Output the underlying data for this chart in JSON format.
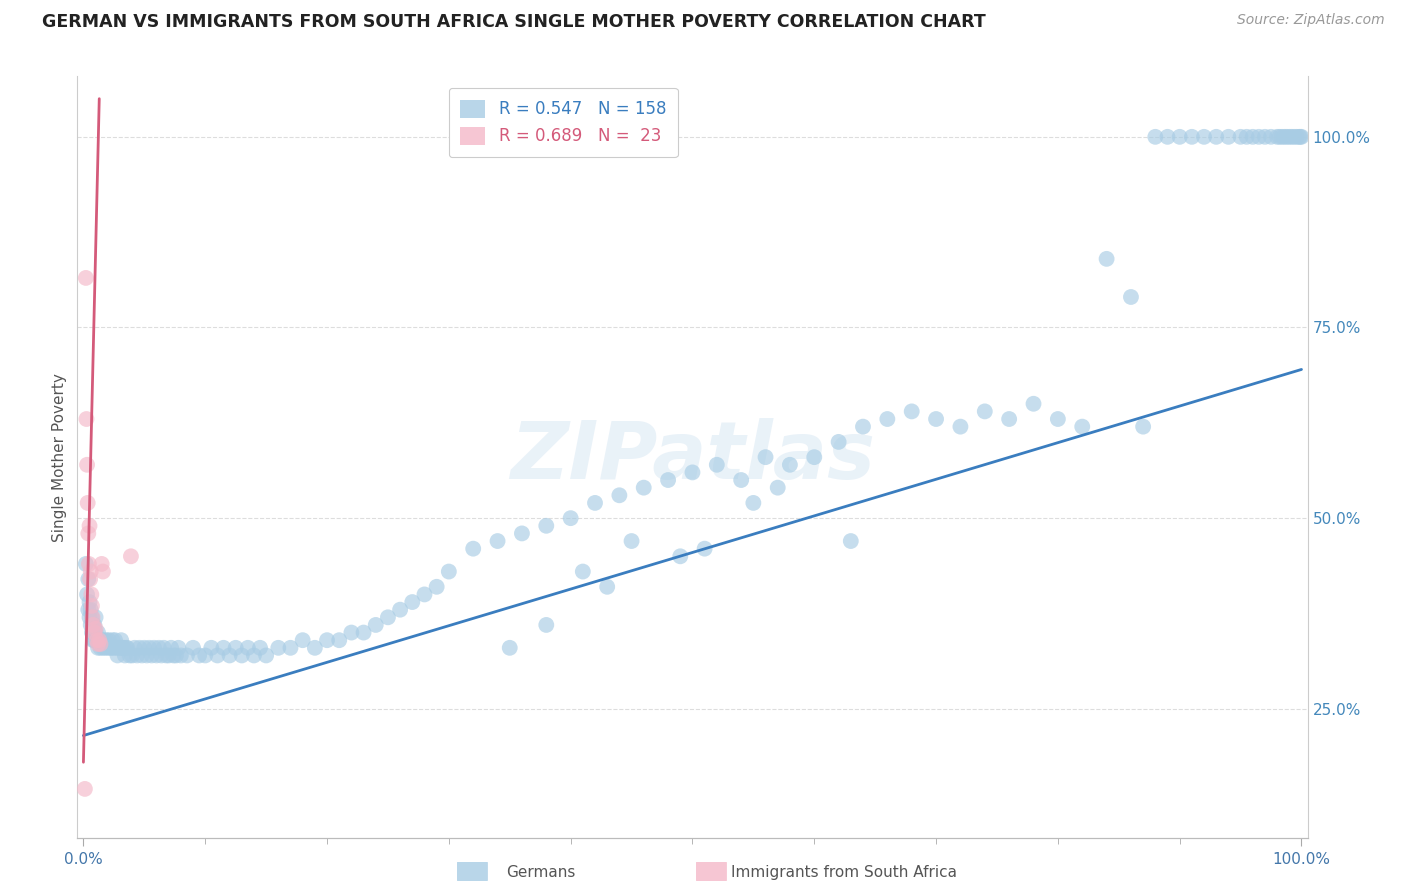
{
  "title": "GERMAN VS IMMIGRANTS FROM SOUTH AFRICA SINGLE MOTHER POVERTY CORRELATION CHART",
  "source": "Source: ZipAtlas.com",
  "ylabel": "Single Mother Poverty",
  "blue_R": 0.547,
  "blue_N": 158,
  "pink_R": 0.689,
  "pink_N": 23,
  "blue_color": "#a8cce4",
  "pink_color": "#f4b8c8",
  "blue_line_color": "#3a7dbf",
  "pink_line_color": "#d45a7a",
  "legend_label_blue": "Germans",
  "legend_label_pink": "Immigrants from South Africa",
  "watermark": "ZIPatlas",
  "blue_line_x0": 0.0,
  "blue_line_x1": 1.0,
  "blue_line_y0": 0.215,
  "blue_line_y1": 0.695,
  "pink_line_x0": 0.0,
  "pink_line_x1": 0.013,
  "pink_line_y0": 0.18,
  "pink_line_y1": 1.05,
  "xlim_min": -0.005,
  "xlim_max": 1.005,
  "ylim_min": 0.08,
  "ylim_max": 1.08,
  "ytick_positions": [
    0.25,
    0.5,
    0.75,
    1.0
  ],
  "ytick_labels": [
    "25.0%",
    "50.0%",
    "75.0%",
    "100.0%"
  ],
  "blue_x": [
    0.002,
    0.003,
    0.004,
    0.004,
    0.005,
    0.005,
    0.006,
    0.006,
    0.007,
    0.007,
    0.008,
    0.008,
    0.009,
    0.009,
    0.01,
    0.01,
    0.011,
    0.012,
    0.012,
    0.013,
    0.014,
    0.015,
    0.016,
    0.017,
    0.018,
    0.019,
    0.02,
    0.021,
    0.022,
    0.023,
    0.024,
    0.025,
    0.026,
    0.027,
    0.028,
    0.029,
    0.03,
    0.031,
    0.032,
    0.033,
    0.034,
    0.035,
    0.036,
    0.038,
    0.04,
    0.042,
    0.044,
    0.046,
    0.048,
    0.05,
    0.052,
    0.054,
    0.056,
    0.058,
    0.06,
    0.062,
    0.064,
    0.066,
    0.068,
    0.07,
    0.072,
    0.074,
    0.076,
    0.078,
    0.08,
    0.085,
    0.09,
    0.095,
    0.1,
    0.105,
    0.11,
    0.115,
    0.12,
    0.125,
    0.13,
    0.135,
    0.14,
    0.145,
    0.15,
    0.16,
    0.17,
    0.18,
    0.19,
    0.2,
    0.21,
    0.22,
    0.23,
    0.24,
    0.25,
    0.26,
    0.27,
    0.28,
    0.29,
    0.3,
    0.32,
    0.34,
    0.36,
    0.38,
    0.4,
    0.42,
    0.44,
    0.46,
    0.48,
    0.5,
    0.52,
    0.54,
    0.56,
    0.58,
    0.6,
    0.62,
    0.64,
    0.66,
    0.68,
    0.7,
    0.72,
    0.74,
    0.76,
    0.78,
    0.8,
    0.82,
    0.84,
    0.86,
    0.87,
    0.88,
    0.89,
    0.9,
    0.91,
    0.92,
    0.93,
    0.94,
    0.95,
    0.955,
    0.96,
    0.965,
    0.97,
    0.975,
    0.98,
    0.982,
    0.984,
    0.986,
    0.988,
    0.99,
    0.992,
    0.994,
    0.996,
    0.998,
    0.999,
    1.0,
    0.63,
    0.49,
    0.51,
    0.43,
    0.38,
    0.55,
    0.57,
    0.41,
    0.45,
    0.35
  ],
  "blue_y": [
    0.44,
    0.4,
    0.38,
    0.42,
    0.37,
    0.39,
    0.36,
    0.38,
    0.35,
    0.37,
    0.34,
    0.36,
    0.34,
    0.36,
    0.35,
    0.37,
    0.34,
    0.33,
    0.35,
    0.34,
    0.33,
    0.34,
    0.33,
    0.34,
    0.33,
    0.34,
    0.33,
    0.34,
    0.33,
    0.33,
    0.34,
    0.33,
    0.34,
    0.33,
    0.32,
    0.33,
    0.33,
    0.34,
    0.33,
    0.33,
    0.32,
    0.33,
    0.33,
    0.32,
    0.32,
    0.33,
    0.32,
    0.33,
    0.32,
    0.33,
    0.32,
    0.33,
    0.32,
    0.33,
    0.32,
    0.33,
    0.32,
    0.33,
    0.32,
    0.32,
    0.33,
    0.32,
    0.32,
    0.33,
    0.32,
    0.32,
    0.33,
    0.32,
    0.32,
    0.33,
    0.32,
    0.33,
    0.32,
    0.33,
    0.32,
    0.33,
    0.32,
    0.33,
    0.32,
    0.33,
    0.33,
    0.34,
    0.33,
    0.34,
    0.34,
    0.35,
    0.35,
    0.36,
    0.37,
    0.38,
    0.39,
    0.4,
    0.41,
    0.43,
    0.46,
    0.47,
    0.48,
    0.49,
    0.5,
    0.52,
    0.53,
    0.54,
    0.55,
    0.56,
    0.57,
    0.55,
    0.58,
    0.57,
    0.58,
    0.6,
    0.62,
    0.63,
    0.64,
    0.63,
    0.62,
    0.64,
    0.63,
    0.65,
    0.63,
    0.62,
    0.84,
    0.79,
    0.62,
    1.0,
    1.0,
    1.0,
    1.0,
    1.0,
    1.0,
    1.0,
    1.0,
    1.0,
    1.0,
    1.0,
    1.0,
    1.0,
    1.0,
    1.0,
    1.0,
    1.0,
    1.0,
    1.0,
    1.0,
    1.0,
    1.0,
    1.0,
    1.0,
    1.0,
    0.47,
    0.45,
    0.46,
    0.41,
    0.36,
    0.52,
    0.54,
    0.43,
    0.47,
    0.33
  ],
  "pink_x": [
    0.0012,
    0.002,
    0.0025,
    0.003,
    0.0035,
    0.004,
    0.0045,
    0.005,
    0.0055,
    0.006,
    0.0065,
    0.007,
    0.0075,
    0.008,
    0.009,
    0.01,
    0.011,
    0.012,
    0.013,
    0.014,
    0.015,
    0.016,
    0.039
  ],
  "pink_y": [
    0.145,
    0.815,
    0.63,
    0.57,
    0.52,
    0.48,
    0.44,
    0.49,
    0.42,
    0.43,
    0.4,
    0.385,
    0.37,
    0.36,
    0.35,
    0.355,
    0.34,
    0.335,
    0.34,
    0.335,
    0.44,
    0.43,
    0.45
  ]
}
